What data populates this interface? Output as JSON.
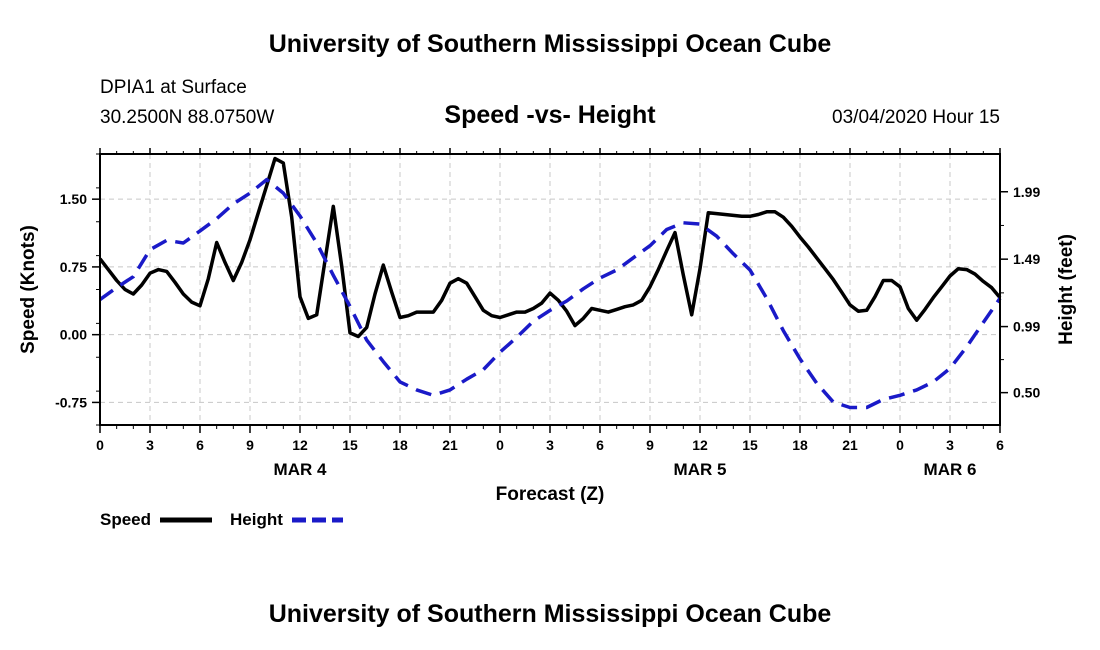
{
  "header": {
    "title": "University of Southern Mississippi Ocean Cube",
    "station": "DPIA1 at Surface",
    "coords": "30.2500N 88.0750W",
    "subtitle": "Speed -vs- Height",
    "datetime": "03/04/2020 Hour 15"
  },
  "footer": {
    "title": "University of Southern Mississippi Ocean Cube"
  },
  "colors": {
    "speed": "#000000",
    "height": "#1a1ac8",
    "grid": "#c8c8c8"
  },
  "chart_data": {
    "type": "line",
    "xlabel": "Forecast (Z)",
    "ylabel_left": "Speed (Knots)",
    "ylabel_right": "Height (feet)",
    "x_range_hours": [
      0,
      54
    ],
    "xtick_labels": [
      "0",
      "3",
      "6",
      "9",
      "12",
      "15",
      "18",
      "21",
      "0",
      "3",
      "6",
      "9",
      "12",
      "15",
      "18",
      "21",
      "0",
      "3",
      "6"
    ],
    "date_labels": [
      {
        "label": "MAR 4",
        "hour": 12
      },
      {
        "label": "MAR 5",
        "hour": 36
      },
      {
        "label": "MAR 6",
        "hour": 51
      }
    ],
    "left_axis": {
      "range": [
        -1.0,
        2.0
      ],
      "ticks": [
        -0.75,
        0.0,
        0.75,
        1.5
      ],
      "tick_labels": [
        "-0.75",
        "0.00",
        "0.75",
        "1.50"
      ]
    },
    "right_axis": {
      "range": [
        0.26,
        2.27
      ],
      "ticks": [
        0.5,
        0.99,
        1.49,
        1.99
      ],
      "tick_labels": [
        "0.50",
        "0.99",
        "1.49",
        "1.99"
      ]
    },
    "series": [
      {
        "name": "Speed",
        "axis": "left",
        "style": "solid",
        "x": [
          0,
          0.5,
          1,
          1.5,
          2,
          2.5,
          3,
          3.5,
          4,
          4.5,
          5,
          5.5,
          6,
          6.5,
          7,
          7.5,
          8,
          8.5,
          9,
          9.5,
          10,
          10.5,
          11,
          11.5,
          12,
          12.5,
          13,
          13.5,
          14,
          14.5,
          15,
          15.5,
          16,
          16.5,
          17,
          17.5,
          18,
          18.5,
          19,
          19.5,
          20,
          20.5,
          21,
          21.5,
          22,
          22.5,
          23,
          23.5,
          24,
          24.5,
          25,
          25.5,
          26,
          26.5,
          27,
          27.5,
          28,
          28.5,
          29,
          29.5,
          30,
          30.5,
          31,
          31.5,
          32,
          32.5,
          33,
          33.5,
          34,
          34.5,
          35,
          35.5,
          36,
          36.5,
          37,
          37.5,
          38,
          38.5,
          39,
          39.5,
          40,
          40.5,
          41,
          41.5,
          42,
          42.5,
          43,
          43.5,
          44,
          44.5,
          45,
          45.5,
          46,
          46.5,
          47,
          47.5,
          48,
          48.5,
          49,
          49.5,
          50,
          50.5,
          51,
          51.5,
          52,
          52.5,
          53,
          53.5,
          54
        ],
        "values": [
          0.84,
          0.72,
          0.6,
          0.5,
          0.45,
          0.55,
          0.68,
          0.72,
          0.7,
          0.58,
          0.45,
          0.36,
          0.32,
          0.62,
          1.02,
          0.8,
          0.6,
          0.8,
          1.05,
          1.35,
          1.65,
          1.95,
          1.9,
          1.3,
          0.42,
          0.18,
          0.22,
          0.82,
          1.42,
          0.76,
          0.02,
          -0.02,
          0.08,
          0.45,
          0.77,
          0.47,
          0.19,
          0.21,
          0.25,
          0.25,
          0.25,
          0.38,
          0.57,
          0.62,
          0.57,
          0.42,
          0.27,
          0.21,
          0.19,
          0.22,
          0.25,
          0.25,
          0.29,
          0.35,
          0.46,
          0.38,
          0.26,
          0.1,
          0.18,
          0.29,
          0.27,
          0.25,
          0.28,
          0.31,
          0.33,
          0.38,
          0.53,
          0.72,
          0.93,
          1.13,
          0.66,
          0.22,
          0.73,
          1.35,
          1.34,
          1.33,
          1.32,
          1.31,
          1.31,
          1.33,
          1.36,
          1.36,
          1.3,
          1.2,
          1.08,
          0.97,
          0.85,
          0.73,
          0.61,
          0.47,
          0.33,
          0.26,
          0.27,
          0.42,
          0.6,
          0.6,
          0.53,
          0.29,
          0.16,
          0.28,
          0.41,
          0.53,
          0.65,
          0.73,
          0.72,
          0.67,
          0.59,
          0.52,
          0.41
        ]
      },
      {
        "name": "Height",
        "axis": "right",
        "style": "dashed",
        "x": [
          0,
          1,
          2,
          3,
          4,
          5,
          6,
          7,
          8,
          9,
          10,
          11,
          12,
          13,
          14,
          15,
          16,
          17,
          18,
          19,
          20,
          21,
          22,
          23,
          24,
          25,
          26,
          27,
          28,
          29,
          30,
          31,
          32,
          33,
          34,
          35,
          36,
          37,
          38,
          39,
          40,
          41,
          42,
          43,
          44,
          45,
          46,
          47,
          48,
          49,
          50,
          51,
          52,
          53,
          54
        ],
        "values": [
          1.19,
          1.28,
          1.36,
          1.56,
          1.63,
          1.61,
          1.7,
          1.79,
          1.9,
          1.98,
          2.08,
          1.98,
          1.81,
          1.61,
          1.37,
          1.14,
          0.89,
          0.73,
          0.58,
          0.52,
          0.48,
          0.52,
          0.6,
          0.67,
          0.8,
          0.91,
          1.03,
          1.11,
          1.18,
          1.27,
          1.35,
          1.41,
          1.5,
          1.59,
          1.71,
          1.76,
          1.75,
          1.66,
          1.53,
          1.41,
          1.2,
          0.96,
          0.75,
          0.57,
          0.43,
          0.39,
          0.39,
          0.45,
          0.48,
          0.52,
          0.58,
          0.68,
          0.84,
          1.02,
          1.2
        ]
      }
    ],
    "legend": {
      "placement": "bottom-left",
      "entries": [
        "Speed",
        "Height"
      ]
    }
  }
}
